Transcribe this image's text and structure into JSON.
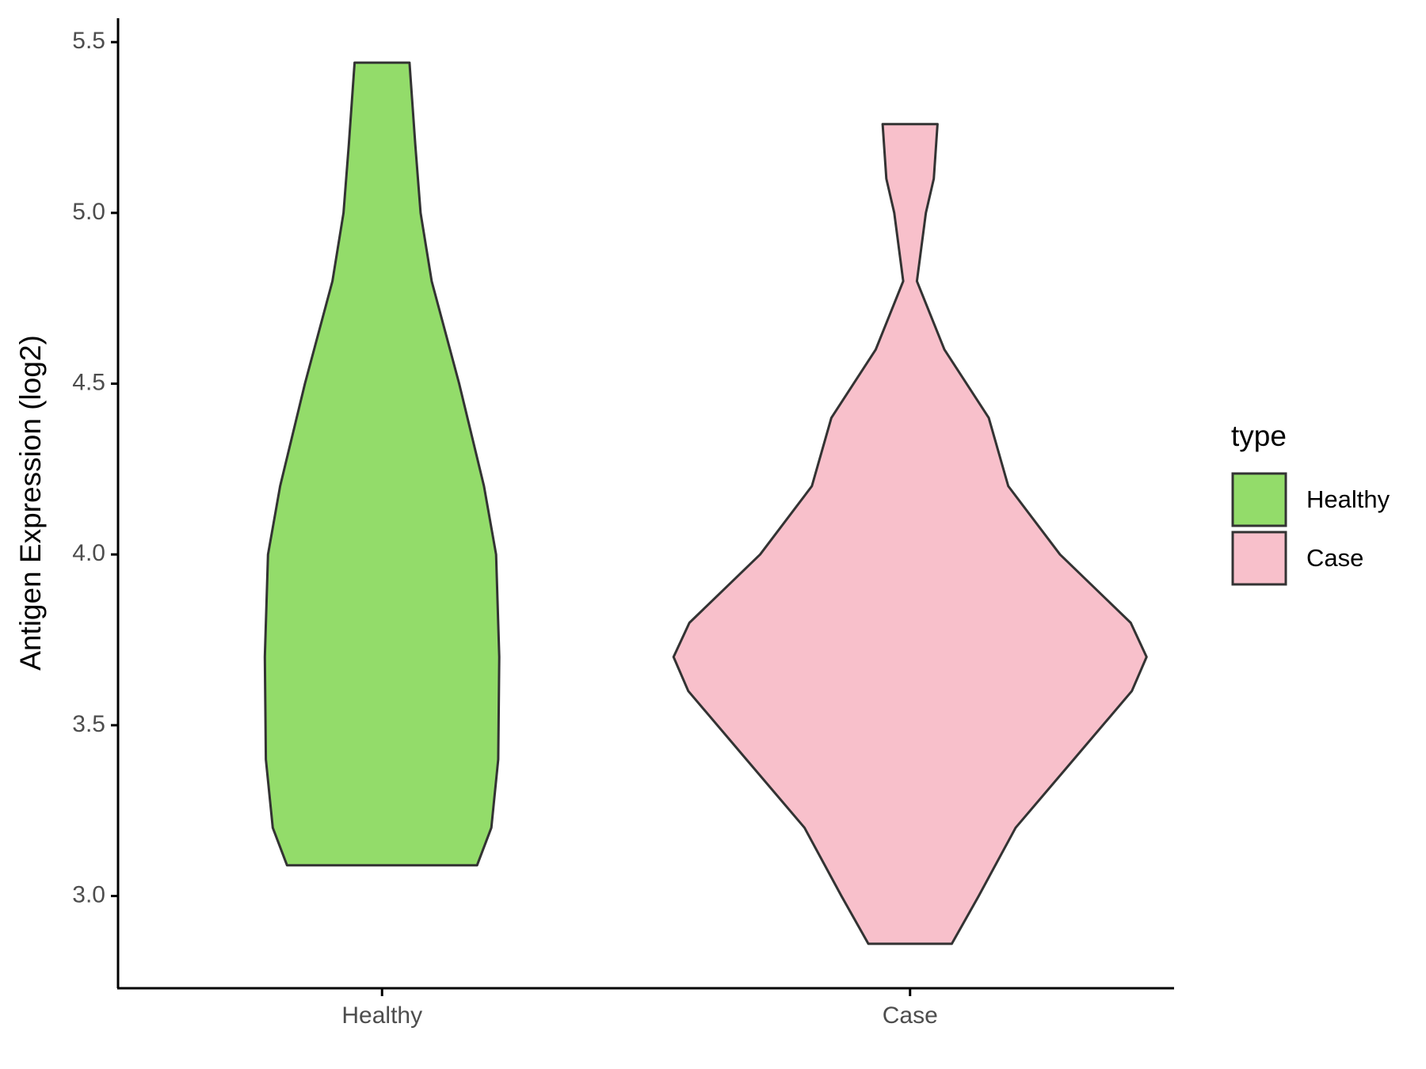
{
  "chart_data": {
    "type": "violin",
    "y_label": "Antigen Expression (log2)",
    "legend_title": "type",
    "categories": [
      "Healthy",
      "Case"
    ],
    "ylim": [
      2.73,
      5.57
    ],
    "yticks": [
      {
        "value": 3,
        "label": "3.0"
      },
      3.5,
      {
        "value": 4,
        "label": "4.0"
      },
      4.5,
      {
        "value": 5,
        "label": "5.0"
      },
      5.5
    ],
    "legend_position": "right",
    "series": [
      {
        "name": "Healthy",
        "color": "#93dc6a",
        "y": [
          3.09,
          3.2,
          3.4,
          3.7,
          4.0,
          4.2,
          4.5,
          4.8,
          5.0,
          5.2,
          5.44
        ],
        "half_width": [
          0.18,
          0.207,
          0.22,
          0.222,
          0.216,
          0.193,
          0.146,
          0.094,
          0.073,
          0.063,
          0.052
        ]
      },
      {
        "name": "Case",
        "color": "#f8c0cb",
        "y": [
          2.86,
          3.0,
          3.2,
          3.4,
          3.6,
          3.7,
          3.8,
          4.0,
          4.2,
          4.4,
          4.6,
          4.8,
          5.0,
          5.1,
          5.26
        ],
        "half_width": [
          0.079,
          0.13,
          0.2,
          0.31,
          0.42,
          0.448,
          0.418,
          0.284,
          0.186,
          0.149,
          0.065,
          0.013,
          0.03,
          0.045,
          0.052
        ]
      }
    ]
  }
}
